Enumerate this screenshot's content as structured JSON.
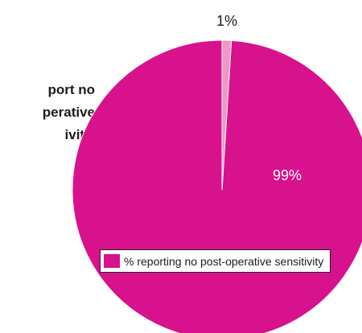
{
  "side_text": {
    "line1": "port no",
    "line2": "perative",
    "line3": "ivity."
  },
  "chart_data": {
    "type": "pie",
    "title": "",
    "slices": [
      {
        "name": "% reporting no post-operative sensitivity",
        "value": 99,
        "label": "99%",
        "color": "#d8118c"
      },
      {
        "name": "",
        "value": 1,
        "label": "1%",
        "color": "#f097c5"
      }
    ],
    "legend": {
      "placement": "bottom-left",
      "entries": [
        "% reporting no post-operative sensitivity"
      ]
    }
  }
}
